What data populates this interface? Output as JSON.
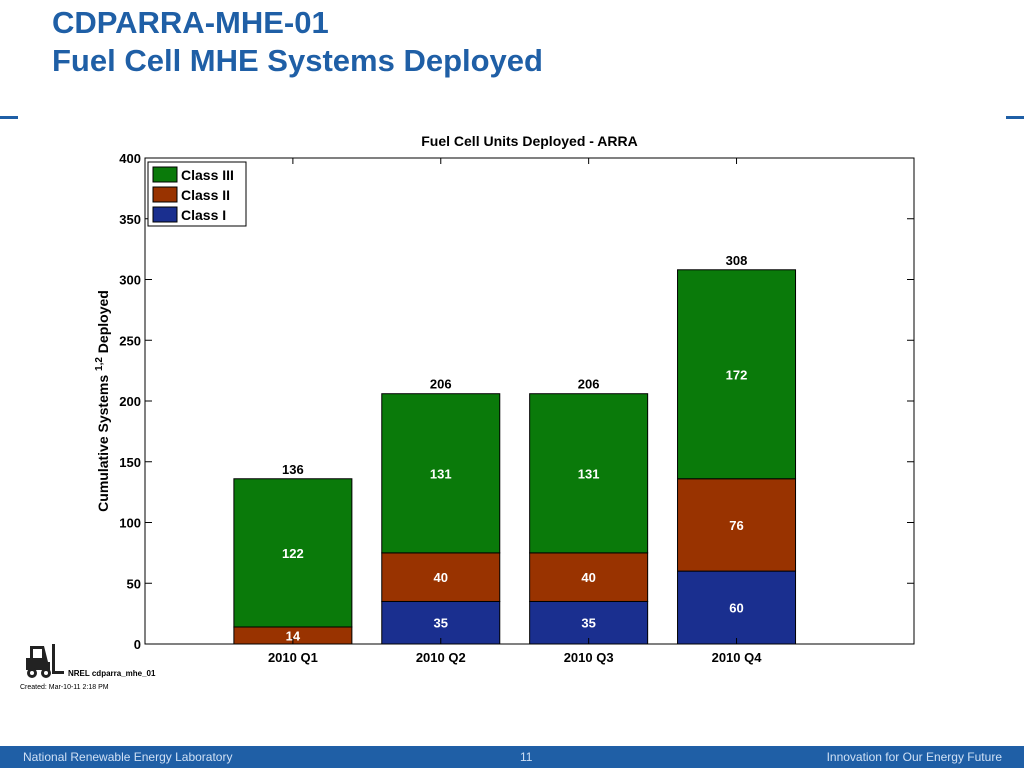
{
  "slide": {
    "title_line1": "CDPARRA-MHE-01",
    "title_line2": "Fuel Cell MHE Systems Deployed",
    "accent_color": "#1f5fa6"
  },
  "meta": {
    "id_label": "NREL cdparra_mhe_01",
    "created": "Created: Mar-10-11  2:18 PM"
  },
  "footer": {
    "left": "National Renewable Energy Laboratory",
    "page": "11",
    "right": "Innovation for Our Energy Future"
  },
  "chart_data": {
    "type": "bar",
    "stacked": true,
    "title": "Fuel Cell Units Deployed - ARRA",
    "ylabel": "Cumulative Systems",
    "ylabel_superscript": "1,2",
    "ylabel_suffix": "Deployed",
    "xlabel": "",
    "ylim": [
      0,
      400
    ],
    "yticks": [
      0,
      50,
      100,
      150,
      200,
      250,
      300,
      350,
      400
    ],
    "categories": [
      "2010 Q1",
      "2010 Q2",
      "2010 Q3",
      "2010 Q4"
    ],
    "series": [
      {
        "name": "Class I",
        "values": [
          0,
          35,
          35,
          60
        ],
        "color": "#1a2f8f",
        "labels": [
          "",
          "35",
          "35",
          "60"
        ]
      },
      {
        "name": "Class II",
        "values": [
          14,
          40,
          40,
          76
        ],
        "color": "#993300",
        "labels": [
          "14",
          "40",
          "40",
          "76"
        ]
      },
      {
        "name": "Class III",
        "values": [
          122,
          131,
          131,
          172
        ],
        "color": "#0a7a0a",
        "labels": [
          "122",
          "131",
          "131",
          "172"
        ]
      }
    ],
    "totals": [
      "136",
      "206",
      "206",
      "308"
    ],
    "legend_order": [
      "Class III",
      "Class II",
      "Class I"
    ],
    "legend_position": "top-left",
    "grid": false
  }
}
